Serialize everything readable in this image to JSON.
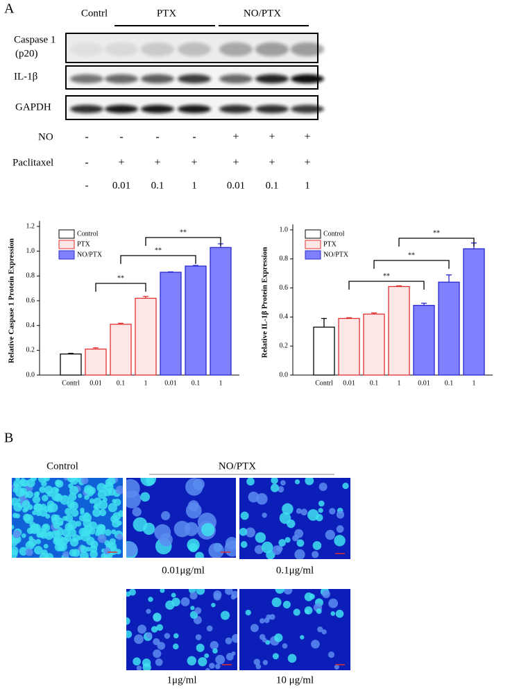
{
  "panel_a": {
    "label": "A",
    "groups": {
      "control": "Contrl",
      "ptx": "PTX",
      "no_ptx": "NO/PTX"
    },
    "blots": {
      "caspase": [
        "Caspase 1",
        "(p20)"
      ],
      "il1b": "IL-1β",
      "gapdh": "GAPDH"
    },
    "rows": [
      {
        "name": "NO",
        "marks": [
          "-",
          "-",
          "-",
          "-",
          "+",
          "+",
          "+"
        ]
      },
      {
        "name": "Paclitaxel",
        "marks": [
          "-",
          "+",
          "+",
          "+",
          "+",
          "+",
          "+"
        ]
      }
    ],
    "doses": [
      "-",
      "0.01",
      "0.1",
      "1",
      "0.01",
      "0.1",
      "1"
    ]
  },
  "chart_data": [
    {
      "type": "bar",
      "y_label": "Relative Caspase 1 Protein Expression",
      "categories": [
        "Contrl",
        "0.01",
        "0.1",
        "1",
        "0.01",
        "0.1",
        "1"
      ],
      "series": [
        {
          "name": "Control",
          "color": "#000000",
          "fill": "#ffffff",
          "values": [
            0.17,
            null,
            null,
            null,
            null,
            null,
            null
          ],
          "errors": [
            0.005,
            null,
            null,
            null,
            null,
            null,
            null
          ]
        },
        {
          "name": "PTX",
          "color": "#e03030",
          "fill": "#fde6e6",
          "values": [
            null,
            0.21,
            0.41,
            0.62,
            null,
            null,
            null
          ],
          "errors": [
            null,
            0.01,
            0.008,
            0.015,
            null,
            null,
            null
          ]
        },
        {
          "name": "NO/PTX",
          "color": "#2a2ad0",
          "fill": "#8080ff",
          "values": [
            null,
            null,
            null,
            null,
            0.83,
            0.88,
            1.03
          ],
          "errors": [
            null,
            null,
            null,
            null,
            0.003,
            0.005,
            0.03
          ]
        }
      ],
      "ylim": [
        0,
        1.2
      ],
      "yticks": [
        {
          "value": 0,
          "label": "0.0"
        },
        {
          "value": 0.2,
          "label": "0.2"
        },
        {
          "value": 0.4,
          "label": "0.4"
        },
        {
          "value": 0.6,
          "label": "0.6"
        },
        {
          "value": 0.8,
          "label": "0.8"
        },
        {
          "value": 1,
          "label": "1.0"
        },
        {
          "value": 1.2,
          "label": "1.2"
        }
      ],
      "annotations": [
        "**",
        "**",
        "**"
      ]
    },
    {
      "type": "bar",
      "y_label": "Relative IL-1β Protein Expression",
      "categories": [
        "Contrl",
        "0.01",
        "0.1",
        "1",
        "0.01",
        "0.1",
        "1"
      ],
      "series": [
        {
          "name": "Control",
          "color": "#000000",
          "fill": "#ffffff",
          "values": [
            0.33,
            null,
            null,
            null,
            null,
            null,
            null
          ],
          "errors": [
            0.06,
            null,
            null,
            null,
            null,
            null,
            null
          ]
        },
        {
          "name": "PTX",
          "color": "#e03030",
          "fill": "#fde6e6",
          "values": [
            null,
            0.39,
            0.42,
            0.61,
            null,
            null,
            null
          ],
          "errors": [
            null,
            0.005,
            0.008,
            0.005,
            null,
            null,
            null
          ]
        },
        {
          "name": "NO/PTX",
          "color": "#2a2ad0",
          "fill": "#8080ff",
          "values": [
            null,
            null,
            null,
            null,
            0.48,
            0.64,
            0.87
          ],
          "errors": [
            null,
            null,
            null,
            null,
            0.015,
            0.05,
            0.04
          ]
        }
      ],
      "ylim": [
        0,
        1
      ],
      "yticks": [
        {
          "value": 0,
          "label": "0.0"
        },
        {
          "value": 0.2,
          "label": "0.2"
        },
        {
          "value": 0.4,
          "label": "0.4"
        },
        {
          "value": 0.6,
          "label": "0.6"
        },
        {
          "value": 0.8,
          "label": "0.8"
        },
        {
          "value": 1,
          "label": "1.0"
        }
      ],
      "annotations": [
        "**",
        "**",
        "**"
      ]
    }
  ],
  "panel_b": {
    "label": "B",
    "control": "Control",
    "group": "NO/PTX",
    "captions": [
      "0.01μg/ml",
      "0.1μg/ml",
      "1μg/ml",
      "10 μg/ml"
    ]
  }
}
